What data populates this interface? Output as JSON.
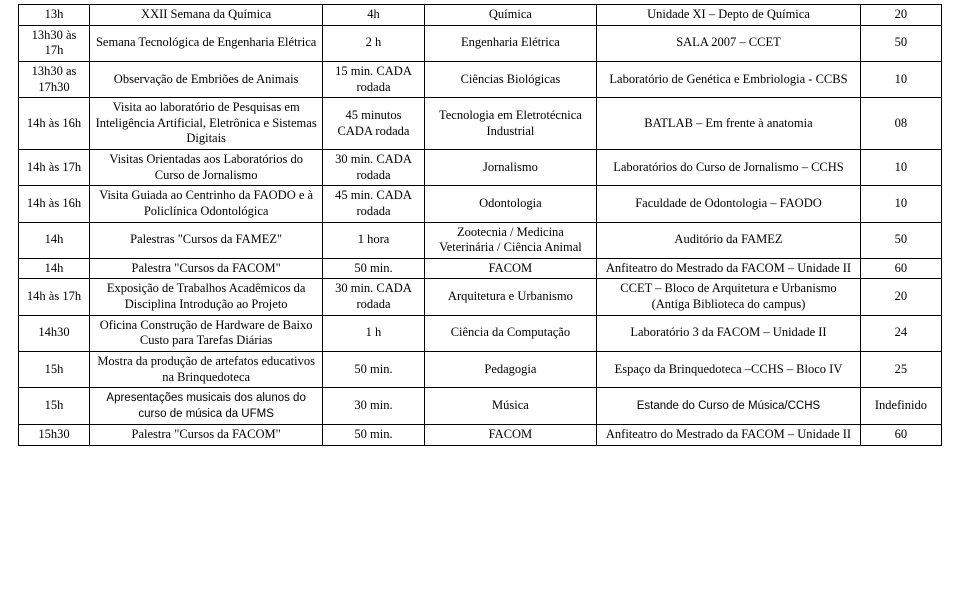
{
  "rows": [
    {
      "time": "13h",
      "activity": "XXII Semana da Química",
      "duration": "4h",
      "area": "Química",
      "place": "Unidade XI – Depto de Química",
      "cap": "20"
    },
    {
      "time": "13h30 às 17h",
      "activity": "Semana Tecnológica de Engenharia Elétrica",
      "duration": "2 h",
      "area": "Engenharia Elétrica",
      "place": "SALA 2007 – CCET",
      "cap": "50"
    },
    {
      "time": "13h30 as 17h30",
      "activity": "Observação de Embriões de Animais",
      "duration": "15 min. CADA rodada",
      "area": "Ciências Biológicas",
      "place": "Laboratório de Genética e Embriologia - CCBS",
      "cap": "10"
    },
    {
      "time": "14h às 16h",
      "activity": "Visita ao laboratório de Pesquisas em Inteligência Artificial, Eletrônica e Sistemas Digitais",
      "duration": "45 minutos CADA rodada",
      "area": "Tecnologia em Eletrotécnica Industrial",
      "place": "BATLAB – Em frente à anatomia",
      "cap": "08"
    },
    {
      "time": "14h às 17h",
      "activity": "Visitas Orientadas aos Laboratórios do Curso de Jornalismo",
      "duration": "30 min. CADA rodada",
      "area": "Jornalismo",
      "place": "Laboratórios do Curso de Jornalismo – CCHS",
      "cap": "10"
    },
    {
      "time": "14h às 16h",
      "activity": "Visita Guiada ao Centrinho da FAODO e à Policlínica Odontológica",
      "duration": "45 min. CADA rodada",
      "area": "Odontologia",
      "place": "Faculdade de Odontologia – FAODO",
      "cap": "10"
    },
    {
      "time": "14h",
      "activity": "Palestras \"Cursos da FAMEZ\"",
      "duration": "1 hora",
      "area": "Zootecnia / Medicina Veterinária / Ciência Animal",
      "place": "Auditório da FAMEZ",
      "cap": "50"
    },
    {
      "time": "14h",
      "activity": "Palestra \"Cursos da FACOM\"",
      "duration": "50 min.",
      "area": "FACOM",
      "place": "Anfiteatro do Mestrado da FACOM – Unidade II",
      "cap": "60"
    },
    {
      "time": "14h às 17h",
      "activity": "Exposição de Trabalhos Acadêmicos da Disciplina Introdução ao Projeto",
      "duration": "30 min. CADA rodada",
      "area": "Arquitetura e Urbanismo",
      "place": "CCET – Bloco de Arquitetura e Urbanismo (Antiga Biblioteca do campus)",
      "cap": "20"
    },
    {
      "time": "14h30",
      "activity": "Oficina Construção de Hardware de Baixo Custo para Tarefas Diárias",
      "duration": "1 h",
      "area": "Ciência da Computação",
      "place": "Laboratório 3 da FACOM – Unidade II",
      "cap": "24"
    },
    {
      "time": "15h",
      "activity": "Mostra da produção de artefatos educativos na Brinquedoteca",
      "duration": "50 min.",
      "area": "Pedagogia",
      "place": "Espaço da Brinquedoteca –CCHS – Bloco IV",
      "cap": "25"
    },
    {
      "time": "15h",
      "activity": "Apresentações musicais dos alunos do curso de música da UFMS",
      "duration": "30 min.",
      "area": "Música",
      "place": "Estande do Curso de Música/CCHS",
      "cap": "Indefinido",
      "font": "music"
    },
    {
      "time": "15h30",
      "activity": "Palestra \"Cursos da FACOM\"",
      "duration": "50 min.",
      "area": "FACOM",
      "place": "Anfiteatro do Mestrado da FACOM – Unidade II",
      "cap": "60"
    }
  ]
}
